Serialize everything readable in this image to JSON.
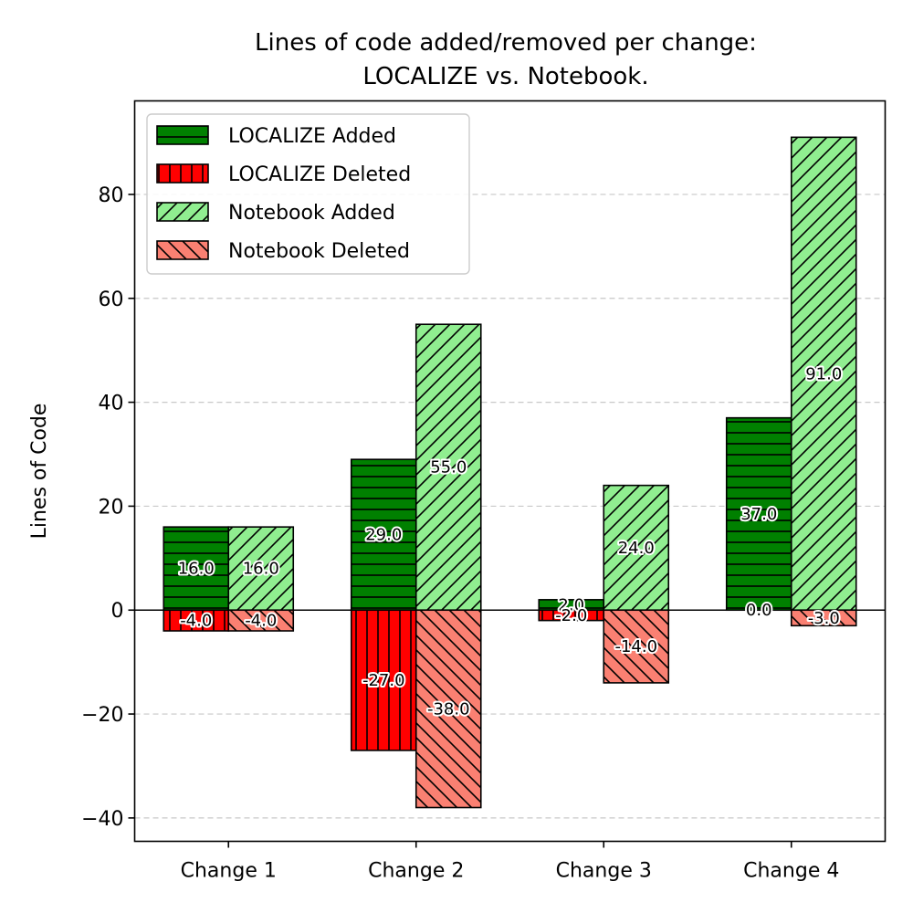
{
  "chart_data": {
    "type": "bar",
    "title": "Lines of code added/removed per change:\nLOCALIZE vs. Notebook.",
    "xlabel": "",
    "ylabel": "Lines of Code",
    "ylim": [
      -44.5,
      98
    ],
    "yticks": [
      -40,
      -20,
      0,
      20,
      40,
      60,
      80
    ],
    "ytick_labels": [
      "−40",
      "−20",
      "0",
      "20",
      "40",
      "60",
      "80"
    ],
    "grid": "horizontal dashed",
    "legend_position": "top-left",
    "categories": [
      "Change 1",
      "Change 2",
      "Change 3",
      "Change 4"
    ],
    "series": [
      {
        "name": "LOCALIZE Added",
        "values": [
          16.0,
          29.0,
          2.0,
          37.0
        ],
        "labels": [
          "16.0",
          "29.0",
          "2.0",
          "37.0"
        ],
        "color": "#008000",
        "hatch": "horizontal",
        "slot": 0
      },
      {
        "name": "LOCALIZE Deleted",
        "values": [
          -4.0,
          -27.0,
          -2.0,
          0.0
        ],
        "labels": [
          "-4.0",
          "-27.0",
          "-2.0",
          "0.0"
        ],
        "color": "#ff0000",
        "hatch": "vertical",
        "slot": 0
      },
      {
        "name": "Notebook Added",
        "values": [
          16.0,
          55.0,
          24.0,
          91.0
        ],
        "labels": [
          "16.0",
          "55.0",
          "24.0",
          "91.0"
        ],
        "color": "#90ee90",
        "hatch": "forward-diagonal",
        "slot": 1
      },
      {
        "name": "Notebook Deleted",
        "values": [
          -4.0,
          -38.0,
          -14.0,
          -3.0
        ],
        "labels": [
          "-4.0",
          "-38.0",
          "-14.0",
          "-3.0"
        ],
        "color": "#fa8072",
        "hatch": "backward-diagonal",
        "slot": 1
      }
    ]
  }
}
